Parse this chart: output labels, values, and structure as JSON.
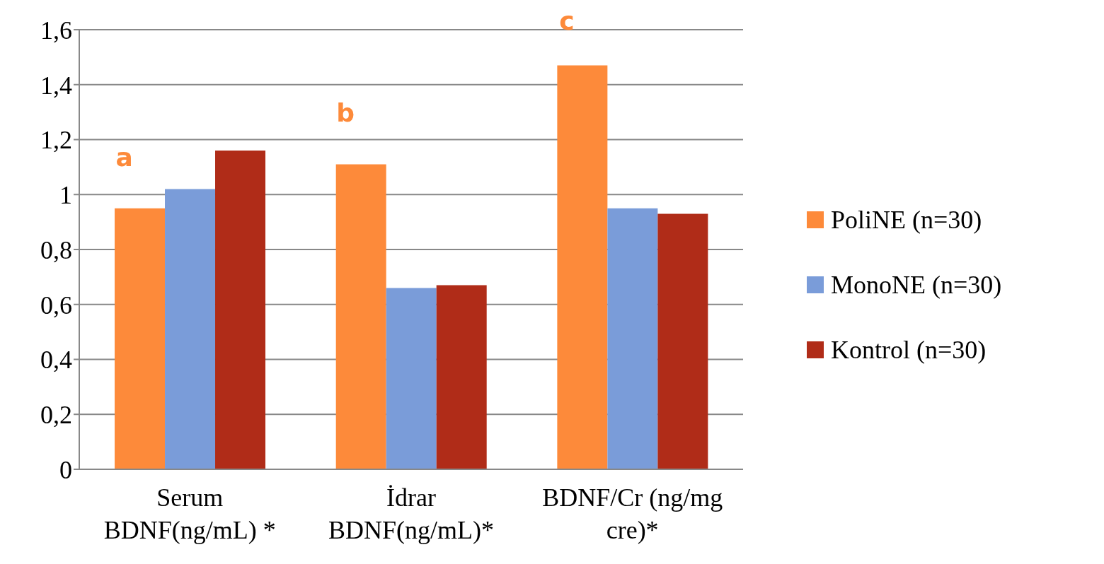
{
  "chart_data": {
    "type": "bar",
    "categories": [
      "Serum BDNF(ng/mL) *",
      "İdrar BDNF(ng/mL)*",
      "BDNF/Cr (ng/mg cre)*"
    ],
    "series": [
      {
        "name": "PoliNE (n=30)",
        "color": "#fd8a3a",
        "values": [
          0.95,
          1.11,
          1.47
        ]
      },
      {
        "name": "MonoNE (n=30)",
        "color": "#7a9cd9",
        "values": [
          1.02,
          0.66,
          0.95
        ]
      },
      {
        "name": "Kontrol (n=30)",
        "color": "#b02c18",
        "values": [
          1.16,
          0.67,
          0.93
        ]
      }
    ],
    "ylim": [
      0,
      1.6
    ],
    "yticks": [
      0,
      {
        "value": 0.2,
        "label": "0,2"
      },
      {
        "value": 0.4,
        "label": "0,4"
      },
      {
        "value": 0.6,
        "label": "0,6"
      },
      {
        "value": 0.8,
        "label": "0,8"
      },
      1,
      {
        "value": 1.2,
        "label": "1,2"
      },
      {
        "value": 1.4,
        "label": "1,4"
      },
      {
        "value": 1.6,
        "label": "1,6"
      }
    ],
    "grid": "y",
    "legend": "right",
    "annotations": [
      "a",
      "b",
      "c"
    ]
  }
}
